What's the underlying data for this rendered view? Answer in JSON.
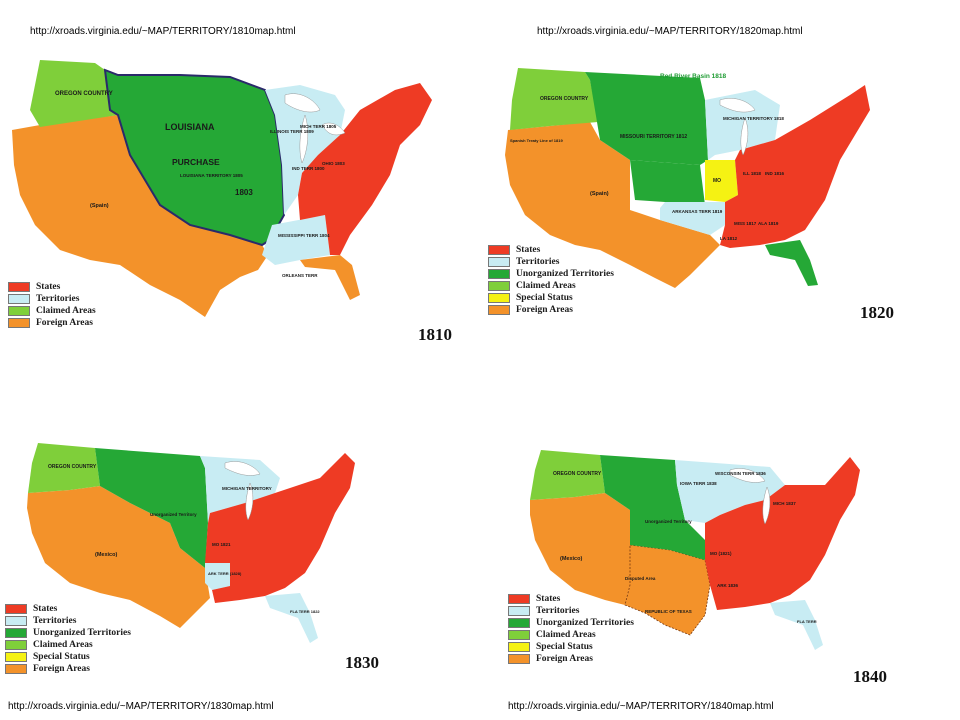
{
  "urls": {
    "tl": "http://xroads.virginia.edu/~MAP/TERRITORY/1810map.html",
    "tr": "http://xroads.virginia.edu/~MAP/TERRITORY/1820map.html",
    "bl": "http://xroads.virginia.edu/~MAP/TERRITORY/1830map.html",
    "br": "http://xroads.virginia.edu/~MAP/TERRITORY/1840map.html"
  },
  "colors": {
    "states": "#ee3b24",
    "territories": "#c8ecf3",
    "unorganized": "#25a836",
    "claimed": "#7fcf3a",
    "special": "#f5f213",
    "foreign": "#f3922a"
  },
  "maps": {
    "m1810": {
      "year": "1810",
      "legend": [
        "States",
        "Territories",
        "Claimed Areas",
        "Foreign Areas"
      ],
      "labels": {
        "oregon": "OREGON COUNTRY",
        "louisiana": "LOUISIANA",
        "purchase": "PURCHASE",
        "lou_terr": "LOUISIANA TERRITORY 1805",
        "yr1803": "1803",
        "spain": "(Spain)",
        "illinois": "ILLINOIS TERR 1809",
        "mich": "MICH TERR 1805",
        "ind": "IND TERR 1800",
        "ohio": "OHIO 1803",
        "miss": "MISSISSIPPI TERR 1804",
        "orleans": "ORLEANS TERR"
      }
    },
    "m1820": {
      "year": "1820",
      "legend": [
        "States",
        "Territories",
        "Unorganized Territories",
        "Claimed Areas",
        "Special Status",
        "Foreign Areas"
      ],
      "labels": {
        "redriver": "Red River Basin 1818",
        "oregon": "OREGON COUNTRY",
        "missouri": "MISSOURI TERRITORY 1812",
        "michigan": "MICHIGAN TERRITORY 1818",
        "spanish": "Spanish Treaty Line of 1819",
        "spain": "(Spain)",
        "mo": "MO",
        "arkansas": "ARKANSAS TERR 1819",
        "ill": "ILL 1818",
        "ind": "IND 1816",
        "miss": "MISS 1817",
        "ala": "ALA 1819",
        "la": "LA 1812"
      }
    },
    "m1830": {
      "year": "1830",
      "legend": [
        "States",
        "Territories",
        "Unorganized Territories",
        "Claimed Areas",
        "Special Status",
        "Foreign Areas"
      ],
      "labels": {
        "oregon": "OREGON COUNTRY",
        "michigan": "MICHIGAN TERRITORY",
        "unorg": "Unorganized Territory",
        "mexico": "(Mexico)",
        "mo": "MO 1821",
        "ark": "ARK TERR (1828)",
        "fla": "FLA TERR 1822"
      }
    },
    "m1840": {
      "year": "1840",
      "legend": [
        "States",
        "Territories",
        "Unorganized Territories",
        "Claimed Areas",
        "Special Status",
        "Foreign Areas"
      ],
      "labels": {
        "oregon": "OREGON COUNTRY",
        "iowa": "IOWA TERR 1838",
        "wisconsin": "WISCONSIN TERR 1836",
        "mich": "MICH 1837",
        "unorg": "Unorganized Territory",
        "mexico": "(Mexico)",
        "disputed": "Disputed Area",
        "texas": "REPUBLIC OF TEXAS",
        "mo": "MO (1821)",
        "ark": "ARK 1836",
        "fla": "FLA TERR"
      }
    }
  }
}
